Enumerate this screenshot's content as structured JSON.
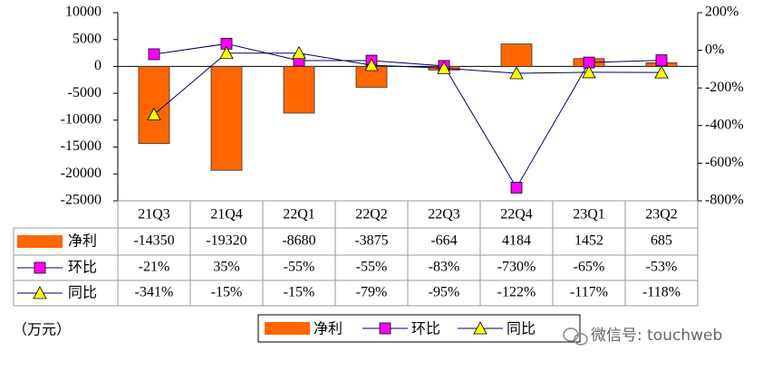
{
  "chart_data": {
    "type": "bar-line-table",
    "categories": [
      "21Q3",
      "21Q4",
      "22Q1",
      "22Q2",
      "22Q3",
      "22Q4",
      "23Q1",
      "23Q2"
    ],
    "series": [
      {
        "name": "净利",
        "type": "bar",
        "color": "#ff6600",
        "values": [
          -14350,
          -19320,
          -8680,
          -3875,
          -664,
          4184,
          1452,
          685
        ]
      },
      {
        "name": "环比",
        "type": "line",
        "axis": "y2",
        "color": "#ff00ff",
        "marker": "square",
        "values": [
          -21,
          35,
          -55,
          -55,
          -83,
          -730,
          -65,
          -53
        ],
        "value_labels": [
          "-21%",
          "35%",
          "-55%",
          "-55%",
          "-83%",
          "-730%",
          "-65%",
          "-53%"
        ]
      },
      {
        "name": "同比",
        "type": "line",
        "axis": "y2",
        "color": "#ffff00",
        "marker": "triangle",
        "values": [
          -341,
          -15,
          -15,
          -79,
          -95,
          -122,
          -117,
          -118
        ],
        "value_labels": [
          "-341%",
          "-15%",
          "-15%",
          "-79%",
          "-95%",
          "-122%",
          "-117%",
          "-118%"
        ]
      }
    ],
    "ylim": [
      -25000,
      10000
    ],
    "yticks": [
      -25000,
      -20000,
      -15000,
      -10000,
      -5000,
      0,
      5000,
      10000
    ],
    "y2lim": [
      -800,
      200
    ],
    "y2ticks": [
      {
        "value": -800,
        "label": "-800%"
      },
      {
        "value": -600,
        "label": "-600%"
      },
      {
        "value": -400,
        "label": "-400%"
      },
      {
        "value": -200,
        "label": "-200%"
      },
      {
        "value": 0,
        "label": "0%"
      },
      {
        "value": 200,
        "label": "200%"
      }
    ],
    "unit_label": "（万元）",
    "watermark": "微信号: touchweb"
  }
}
